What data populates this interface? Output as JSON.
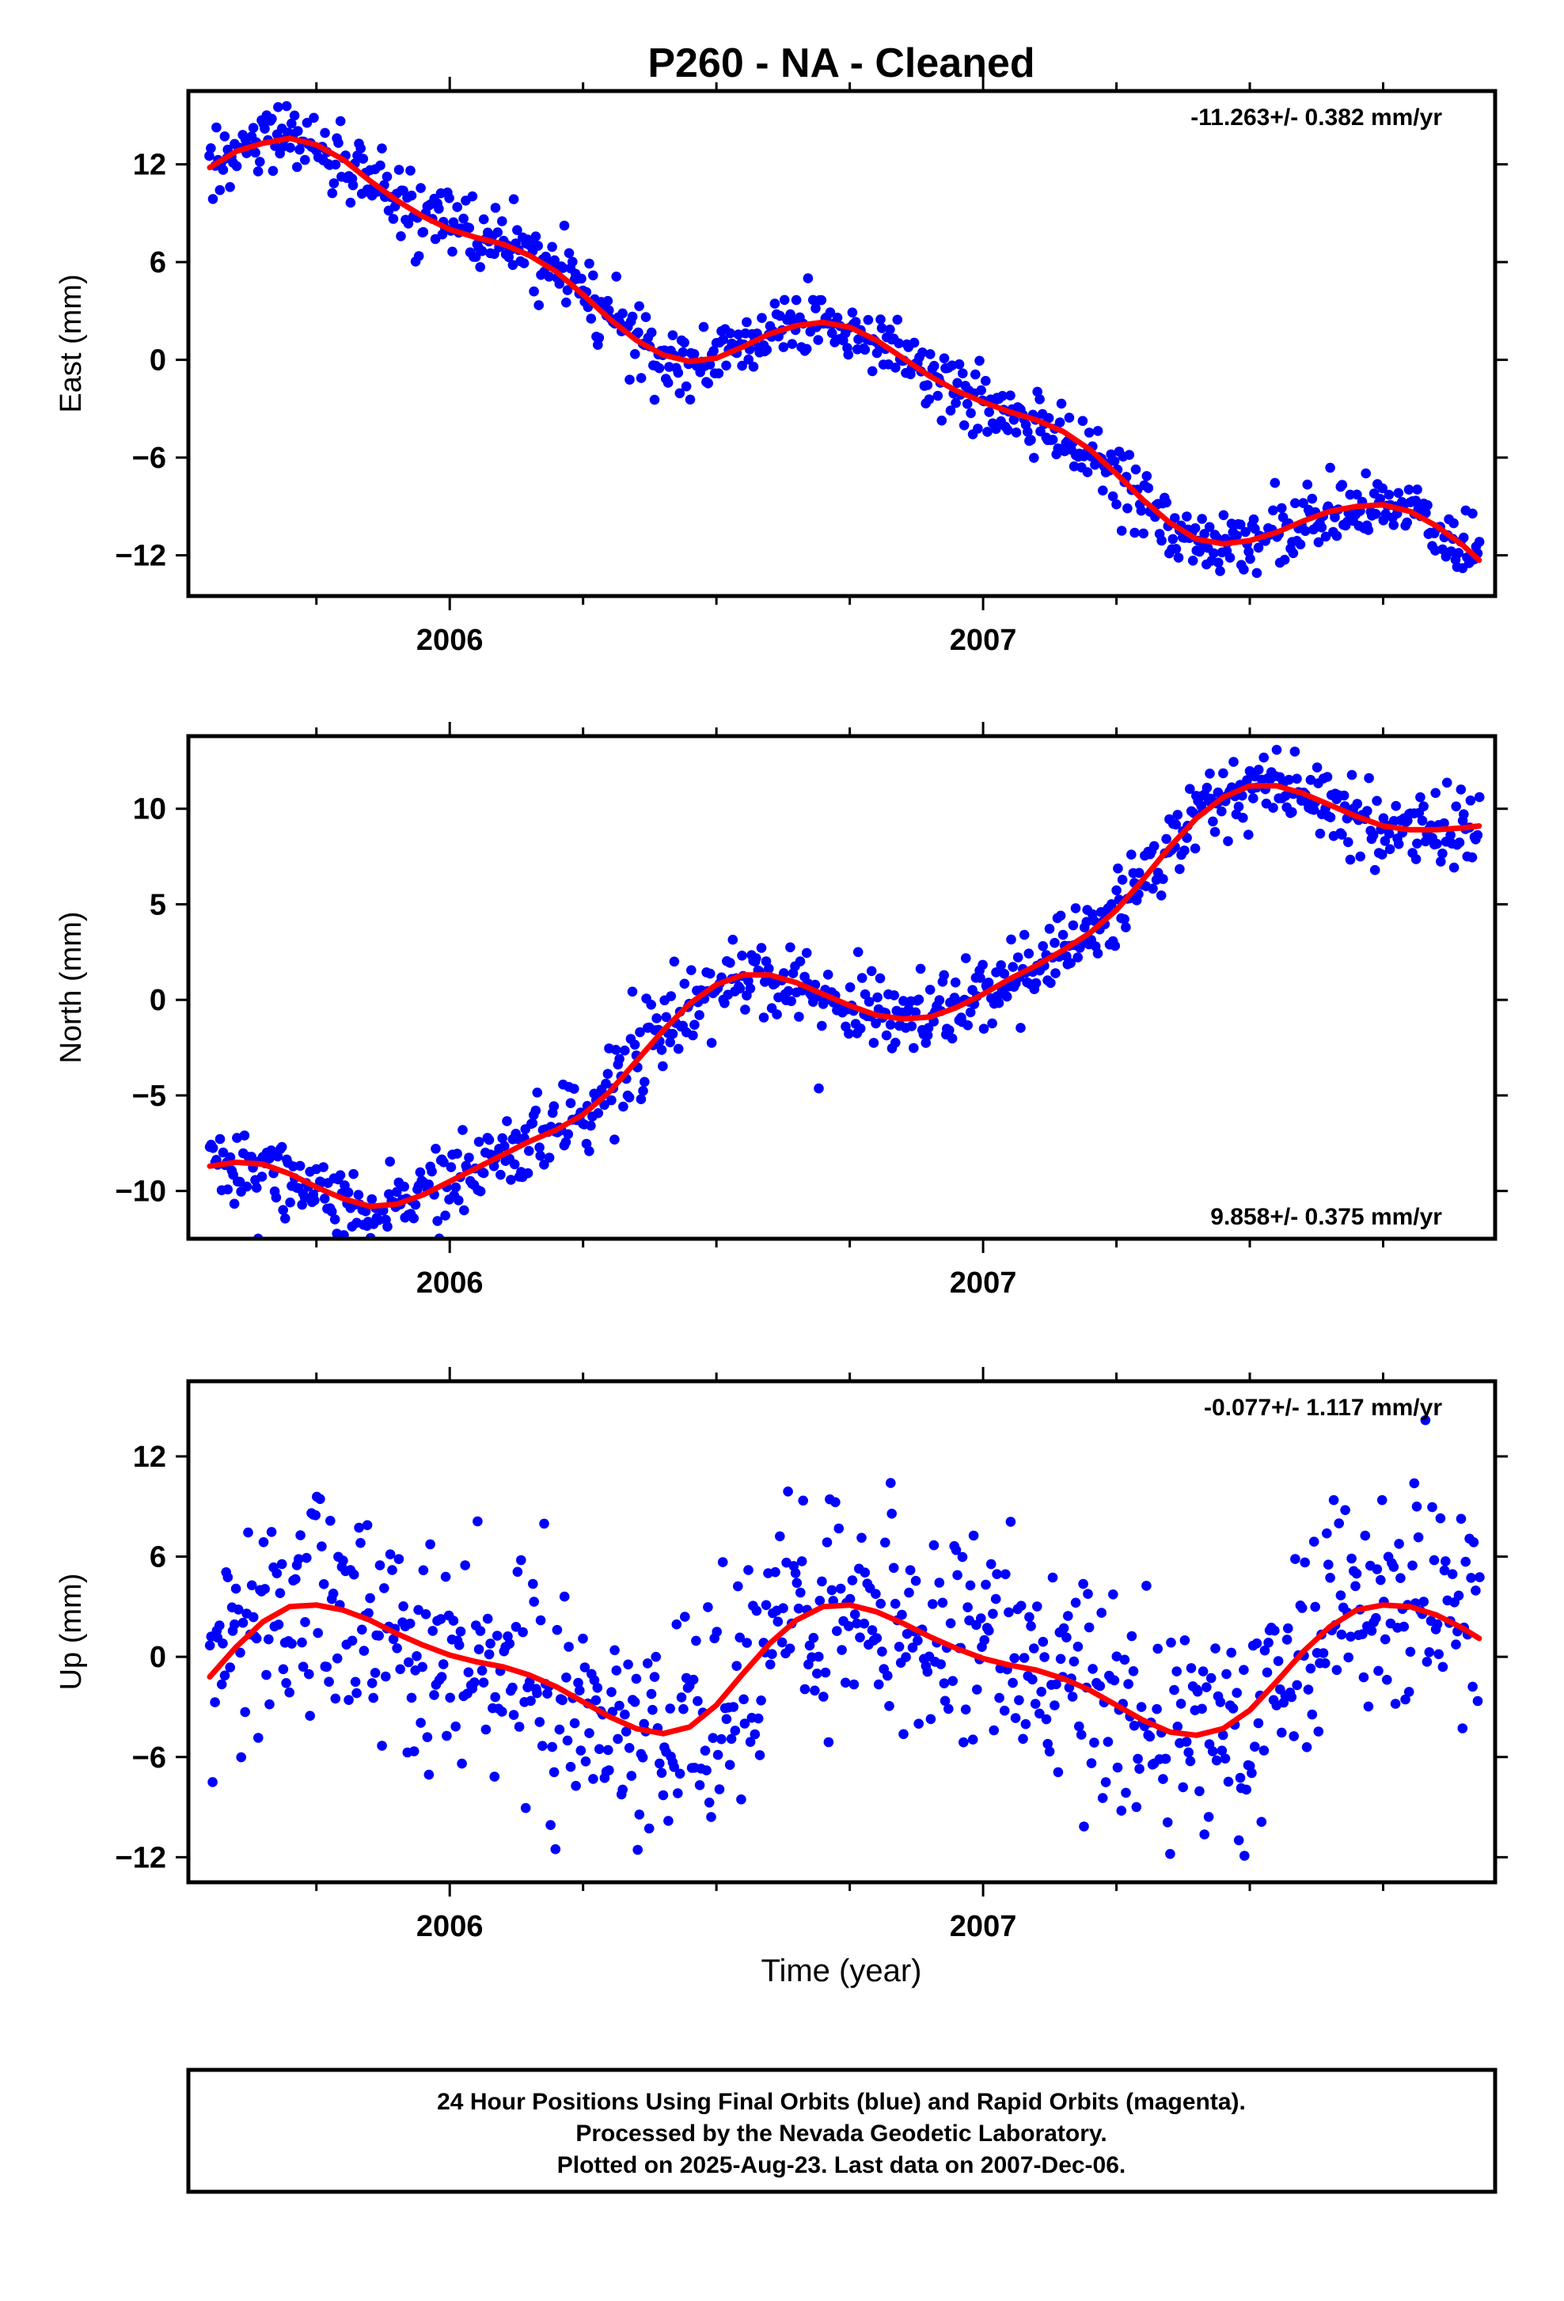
{
  "title": "P260  - NA - Cleaned",
  "colors": {
    "final_orbits": "#0000ff",
    "fit": "#ff0000",
    "frame": "#000000"
  },
  "chart_data": [
    {
      "type": "scatter",
      "id": "east",
      "ylabel": "East (mm)",
      "xlabel": "",
      "xlim": [
        2005.51,
        2007.96
      ],
      "ylim": [
        -14.5,
        16.5
      ],
      "yticks": [
        12,
        6,
        0,
        -6,
        -12
      ],
      "ytick_labels": [
        "12",
        "6",
        "0",
        "−6",
        "−12"
      ],
      "xticks": [
        2006,
        2007
      ],
      "xtick_labels": [
        "2006",
        "2007"
      ],
      "rate_label": "-11.263+/- 0.382 mm/yr",
      "rate_position": "top-right",
      "series": [
        {
          "role": "daily positions",
          "values_sample": [
            [
              2005.55,
              12.0
            ],
            [
              2005.6,
              13.0
            ],
            [
              2005.65,
              13.2
            ],
            [
              2005.7,
              13.5
            ],
            [
              2005.75,
              13.4
            ],
            [
              2005.8,
              12.8
            ],
            [
              2005.9,
              10.5
            ],
            [
              2006.0,
              8.5
            ],
            [
              2006.1,
              7.5
            ],
            [
              2006.2,
              6.0
            ],
            [
              2006.3,
              2.5
            ],
            [
              2006.4,
              0.8
            ],
            [
              2006.45,
              0.0
            ],
            [
              2006.55,
              0.8
            ],
            [
              2006.65,
              2.0
            ],
            [
              2006.75,
              2.2
            ],
            [
              2006.85,
              -0.5
            ],
            [
              2006.95,
              -2.5
            ],
            [
              2007.05,
              -3.8
            ],
            [
              2007.15,
              -5.0
            ],
            [
              2007.25,
              -8.0
            ],
            [
              2007.35,
              -10.5
            ],
            [
              2007.45,
              -11.2
            ],
            [
              2007.55,
              -10.8
            ],
            [
              2007.65,
              -9.5
            ],
            [
              2007.75,
              -9.0
            ],
            [
              2007.85,
              -10.0
            ],
            [
              2007.93,
              -12.5
            ]
          ]
        },
        {
          "role": "model fit",
          "values": [
            [
              2005.55,
              11.8
            ],
            [
              2005.6,
              12.8
            ],
            [
              2005.65,
              13.3
            ],
            [
              2005.7,
              13.6
            ],
            [
              2005.75,
              13.2
            ],
            [
              2005.8,
              12.3
            ],
            [
              2005.85,
              11.0
            ],
            [
              2005.9,
              9.8
            ],
            [
              2005.95,
              8.8
            ],
            [
              2006.0,
              8.0
            ],
            [
              2006.05,
              7.5
            ],
            [
              2006.1,
              7.1
            ],
            [
              2006.15,
              6.4
            ],
            [
              2006.2,
              5.4
            ],
            [
              2006.25,
              4.0
            ],
            [
              2006.3,
              2.5
            ],
            [
              2006.35,
              1.2
            ],
            [
              2006.4,
              0.3
            ],
            [
              2006.45,
              -0.1
            ],
            [
              2006.5,
              0.1
            ],
            [
              2006.55,
              0.8
            ],
            [
              2006.6,
              1.6
            ],
            [
              2006.65,
              2.1
            ],
            [
              2006.7,
              2.3
            ],
            [
              2006.75,
              2.0
            ],
            [
              2006.8,
              1.2
            ],
            [
              2006.85,
              0.1
            ],
            [
              2006.9,
              -1.0
            ],
            [
              2006.95,
              -1.9
            ],
            [
              2007.0,
              -2.6
            ],
            [
              2007.05,
              -3.2
            ],
            [
              2007.1,
              -3.7
            ],
            [
              2007.15,
              -4.4
            ],
            [
              2007.2,
              -5.5
            ],
            [
              2007.25,
              -7.0
            ],
            [
              2007.3,
              -8.6
            ],
            [
              2007.35,
              -10.0
            ],
            [
              2007.4,
              -11.0
            ],
            [
              2007.45,
              -11.3
            ],
            [
              2007.5,
              -11.1
            ],
            [
              2007.55,
              -10.6
            ],
            [
              2007.6,
              -9.9
            ],
            [
              2007.65,
              -9.3
            ],
            [
              2007.7,
              -9.0
            ],
            [
              2007.75,
              -8.9
            ],
            [
              2007.8,
              -9.3
            ],
            [
              2007.85,
              -10.2
            ],
            [
              2007.9,
              -11.4
            ],
            [
              2007.93,
              -12.3
            ]
          ]
        }
      ]
    },
    {
      "type": "scatter",
      "id": "north",
      "ylabel": "North (mm)",
      "xlabel": "",
      "xlim": [
        2005.51,
        2007.96
      ],
      "ylim": [
        -12.5,
        13.8
      ],
      "yticks": [
        10,
        5,
        0,
        -5,
        -10
      ],
      "ytick_labels": [
        "10",
        "5",
        "0",
        "−5",
        "−10"
      ],
      "xticks": [
        2006,
        2007
      ],
      "xtick_labels": [
        "2006",
        "2007"
      ],
      "rate_label": "9.858+/- 0.375 mm/yr",
      "rate_position": "bottom-right",
      "series": [
        {
          "role": "daily positions",
          "values_sample": [
            [
              2005.55,
              -8.5
            ],
            [
              2005.65,
              -8.2
            ],
            [
              2005.75,
              -9.5
            ],
            [
              2005.85,
              -11.0
            ],
            [
              2005.95,
              -10.0
            ],
            [
              2006.05,
              -8.5
            ],
            [
              2006.15,
              -7.0
            ],
            [
              2006.25,
              -5.5
            ],
            [
              2006.35,
              -2.5
            ],
            [
              2006.45,
              -0.5
            ],
            [
              2006.55,
              1.3
            ],
            [
              2006.65,
              0.5
            ],
            [
              2006.75,
              -0.5
            ],
            [
              2006.85,
              -1.0
            ],
            [
              2006.95,
              -0.3
            ],
            [
              2007.05,
              1.5
            ],
            [
              2007.15,
              3.0
            ],
            [
              2007.25,
              5.0
            ],
            [
              2007.35,
              8.0
            ],
            [
              2007.45,
              10.5
            ],
            [
              2007.55,
              11.3
            ],
            [
              2007.65,
              10.5
            ],
            [
              2007.75,
              9.3
            ],
            [
              2007.85,
              9.0
            ],
            [
              2007.93,
              9.0
            ]
          ]
        },
        {
          "role": "model fit",
          "values": [
            [
              2005.55,
              -8.7
            ],
            [
              2005.6,
              -8.5
            ],
            [
              2005.65,
              -8.6
            ],
            [
              2005.7,
              -9.1
            ],
            [
              2005.75,
              -9.8
            ],
            [
              2005.8,
              -10.4
            ],
            [
              2005.85,
              -10.8
            ],
            [
              2005.9,
              -10.7
            ],
            [
              2005.95,
              -10.2
            ],
            [
              2006.0,
              -9.5
            ],
            [
              2006.05,
              -8.8
            ],
            [
              2006.1,
              -8.1
            ],
            [
              2006.15,
              -7.4
            ],
            [
              2006.2,
              -6.8
            ],
            [
              2006.25,
              -6.0
            ],
            [
              2006.3,
              -4.8
            ],
            [
              2006.35,
              -3.2
            ],
            [
              2006.4,
              -1.6
            ],
            [
              2006.45,
              -0.2
            ],
            [
              2006.5,
              0.8
            ],
            [
              2006.55,
              1.3
            ],
            [
              2006.6,
              1.3
            ],
            [
              2006.65,
              0.9
            ],
            [
              2006.7,
              0.3
            ],
            [
              2006.75,
              -0.3
            ],
            [
              2006.8,
              -0.8
            ],
            [
              2006.85,
              -1.0
            ],
            [
              2006.9,
              -0.9
            ],
            [
              2006.95,
              -0.4
            ],
            [
              2007.0,
              0.3
            ],
            [
              2007.05,
              1.1
            ],
            [
              2007.1,
              1.8
            ],
            [
              2007.15,
              2.6
            ],
            [
              2007.2,
              3.5
            ],
            [
              2007.25,
              4.7
            ],
            [
              2007.3,
              6.3
            ],
            [
              2007.35,
              8.0
            ],
            [
              2007.4,
              9.5
            ],
            [
              2007.45,
              10.6
            ],
            [
              2007.5,
              11.2
            ],
            [
              2007.55,
              11.2
            ],
            [
              2007.6,
              10.8
            ],
            [
              2007.65,
              10.2
            ],
            [
              2007.7,
              9.6
            ],
            [
              2007.75,
              9.1
            ],
            [
              2007.8,
              8.9
            ],
            [
              2007.85,
              8.9
            ],
            [
              2007.9,
              9.0
            ],
            [
              2007.93,
              9.1
            ]
          ]
        }
      ]
    },
    {
      "type": "scatter",
      "id": "up",
      "ylabel": "Up (mm)",
      "xlabel": "Time (year)",
      "xlim": [
        2005.51,
        2007.96
      ],
      "ylim": [
        -13.5,
        16.5
      ],
      "yticks": [
        12,
        6,
        0,
        -6,
        -12
      ],
      "ytick_labels": [
        "12",
        "6",
        "0",
        "−6",
        "−12"
      ],
      "xticks": [
        2006,
        2007
      ],
      "xtick_labels": [
        "2006",
        "2007"
      ],
      "rate_label": "-0.077+/- 1.117 mm/yr",
      "rate_position": "top-right",
      "series": [
        {
          "role": "daily positions",
          "values_sample": [
            [
              2005.55,
              -1.0
            ],
            [
              2005.6,
              1.5
            ],
            [
              2005.65,
              3.0
            ],
            [
              2005.75,
              3.2
            ],
            [
              2005.85,
              2.0
            ],
            [
              2005.95,
              0.8
            ],
            [
              2006.05,
              -0.3
            ],
            [
              2006.15,
              -1.0
            ],
            [
              2006.25,
              -2.8
            ],
            [
              2006.35,
              -4.2
            ],
            [
              2006.42,
              -4.5
            ],
            [
              2006.5,
              -2.0
            ],
            [
              2006.6,
              1.0
            ],
            [
              2006.7,
              3.0
            ],
            [
              2006.8,
              2.5
            ],
            [
              2006.9,
              1.0
            ],
            [
              2007.0,
              -0.3
            ],
            [
              2007.1,
              -1.0
            ],
            [
              2007.2,
              -2.5
            ],
            [
              2007.3,
              -4.0
            ],
            [
              2007.38,
              -4.6
            ],
            [
              2007.48,
              -3.0
            ],
            [
              2007.58,
              0.0
            ],
            [
              2007.68,
              2.5
            ],
            [
              2007.78,
              3.0
            ],
            [
              2007.88,
              2.0
            ],
            [
              2007.93,
              1.2
            ]
          ]
        },
        {
          "role": "model fit",
          "values": [
            [
              2005.55,
              -1.2
            ],
            [
              2005.6,
              0.6
            ],
            [
              2005.65,
              2.1
            ],
            [
              2005.7,
              3.0
            ],
            [
              2005.75,
              3.1
            ],
            [
              2005.8,
              2.8
            ],
            [
              2005.85,
              2.2
            ],
            [
              2005.9,
              1.4
            ],
            [
              2005.95,
              0.7
            ],
            [
              2006.0,
              0.1
            ],
            [
              2006.05,
              -0.3
            ],
            [
              2006.1,
              -0.6
            ],
            [
              2006.15,
              -1.1
            ],
            [
              2006.2,
              -1.8
            ],
            [
              2006.25,
              -2.7
            ],
            [
              2006.3,
              -3.6
            ],
            [
              2006.35,
              -4.3
            ],
            [
              2006.4,
              -4.6
            ],
            [
              2006.45,
              -4.2
            ],
            [
              2006.5,
              -2.9
            ],
            [
              2006.55,
              -1.0
            ],
            [
              2006.6,
              0.8
            ],
            [
              2006.65,
              2.2
            ],
            [
              2006.7,
              3.0
            ],
            [
              2006.75,
              3.1
            ],
            [
              2006.8,
              2.7
            ],
            [
              2006.85,
              2.0
            ],
            [
              2006.9,
              1.2
            ],
            [
              2006.95,
              0.5
            ],
            [
              2007.0,
              -0.1
            ],
            [
              2007.05,
              -0.5
            ],
            [
              2007.1,
              -0.8
            ],
            [
              2007.15,
              -1.3
            ],
            [
              2007.2,
              -2.0
            ],
            [
              2007.25,
              -2.9
            ],
            [
              2007.3,
              -3.8
            ],
            [
              2007.35,
              -4.5
            ],
            [
              2007.4,
              -4.7
            ],
            [
              2007.45,
              -4.3
            ],
            [
              2007.5,
              -3.2
            ],
            [
              2007.55,
              -1.5
            ],
            [
              2007.6,
              0.3
            ],
            [
              2007.65,
              1.8
            ],
            [
              2007.7,
              2.8
            ],
            [
              2007.75,
              3.1
            ],
            [
              2007.8,
              3.0
            ],
            [
              2007.85,
              2.5
            ],
            [
              2007.9,
              1.7
            ],
            [
              2007.93,
              1.1
            ]
          ]
        }
      ]
    }
  ],
  "footer": {
    "line1": "24 Hour Positions Using Final Orbits (blue) and Rapid Orbits (magenta).",
    "line2": "Processed by the Nevada Geodetic Laboratory.",
    "line3": "Plotted on 2025-Aug-23. Last data on 2007-Dec-06."
  }
}
